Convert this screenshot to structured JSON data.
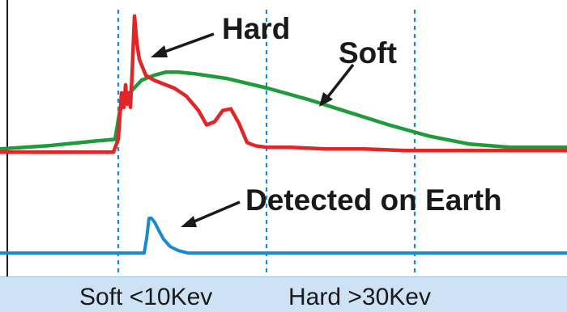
{
  "chart_data": {
    "type": "line",
    "title": "",
    "xlabel": "",
    "ylabel": "",
    "grid": false,
    "colors": {
      "hard": "#e02626",
      "soft": "#1f9a3c",
      "earth": "#1d88d0",
      "markers": "#1d88d0",
      "text": "#1a1a1a"
    },
    "series": [
      {
        "name": "Hard",
        "color": "#e02626",
        "x": [
          0,
          140,
          146,
          150,
          153,
          155,
          157,
          159,
          161,
          163,
          166,
          169,
          172,
          180,
          190,
          200,
          215,
          230,
          245,
          255,
          265,
          275,
          285,
          295,
          305,
          315,
          330,
          360,
          400,
          450,
          500,
          560,
          620,
          700
        ],
        "y": [
          0.1,
          0.1,
          0.18,
          0.47,
          0.38,
          0.52,
          0.4,
          0.47,
          0.38,
          0.58,
          0.95,
          0.78,
          0.68,
          0.58,
          0.55,
          0.53,
          0.5,
          0.45,
          0.36,
          0.27,
          0.29,
          0.36,
          0.37,
          0.28,
          0.16,
          0.14,
          0.13,
          0.13,
          0.12,
          0.12,
          0.11,
          0.11,
          0.11,
          0.11
        ]
      },
      {
        "name": "Soft",
        "color": "#1f9a3c",
        "x": [
          0,
          60,
          120,
          142,
          148,
          160,
          175,
          190,
          205,
          220,
          240,
          280,
          330,
          380,
          430,
          480,
          530,
          580,
          630,
          700
        ],
        "y": [
          0.12,
          0.14,
          0.17,
          0.18,
          0.36,
          0.47,
          0.55,
          0.58,
          0.6,
          0.6,
          0.59,
          0.56,
          0.5,
          0.43,
          0.35,
          0.27,
          0.2,
          0.15,
          0.13,
          0.13
        ]
      },
      {
        "name": "Detected on Earth",
        "color": "#1d88d0",
        "x": [
          0,
          178,
          181,
          184,
          187,
          191,
          196,
          202,
          210,
          220,
          232,
          250,
          700
        ],
        "y": [
          0.0,
          0.0,
          0.18,
          0.43,
          0.43,
          0.38,
          0.28,
          0.17,
          0.08,
          0.03,
          0.0,
          0.0,
          0.0
        ]
      }
    ],
    "markers_x": [
      146,
      329,
      512
    ],
    "annotations": [
      {
        "text": "Hard",
        "target": "Hard"
      },
      {
        "text": "Soft",
        "target": "Soft"
      },
      {
        "text": "Detected on Earth",
        "target": "Detected on Earth"
      }
    ],
    "footer": {
      "soft": "Soft <10Kev",
      "hard": "Hard >30Kev"
    }
  }
}
